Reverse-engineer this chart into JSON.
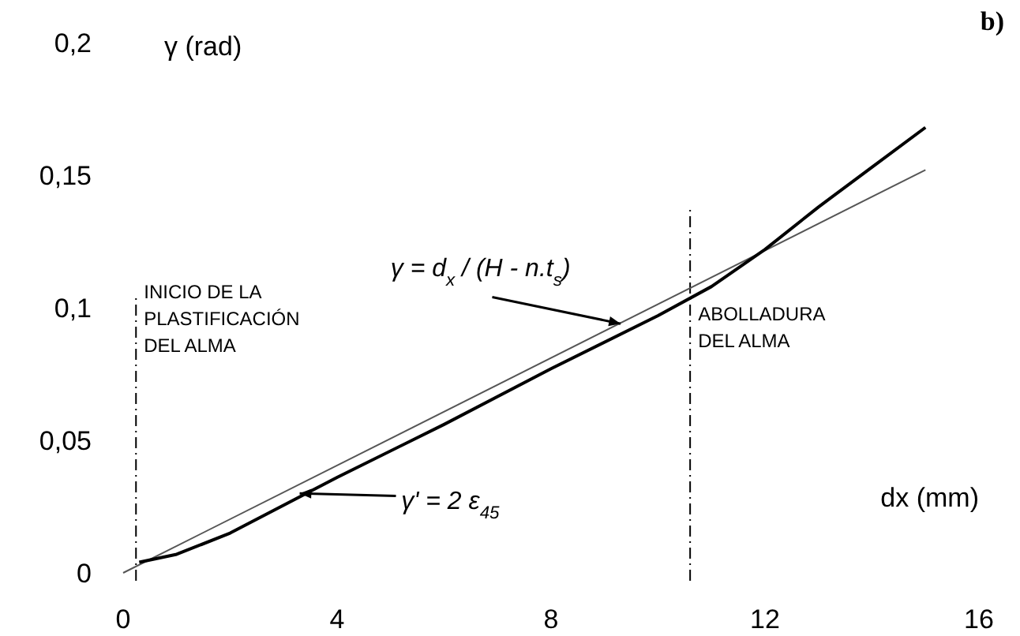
{
  "chart_data": {
    "type": "line",
    "xlabel": "dx (mm)",
    "ylabel": "γ (rad)",
    "annotations": [
      "b)"
    ],
    "xlim": [
      0,
      16
    ],
    "xticks": [
      0,
      4,
      8,
      12,
      16
    ],
    "ylim": [
      0,
      0.2
    ],
    "yticks": [
      {
        "value": 0,
        "label": "0"
      },
      {
        "value": 0.05,
        "label": "0,05"
      },
      {
        "value": 0.1,
        "label": "0,1"
      },
      {
        "value": 0.15,
        "label": "0,15"
      },
      {
        "value": 0.2,
        "label": "0,2"
      }
    ],
    "grid": false,
    "marker": "none",
    "line_style": "solid",
    "series": [
      {
        "name": "γ = d$_{x}$ / (H - n.t$_{s}$)",
        "color": "#555555",
        "x": [
          0,
          15
        ],
        "values": [
          0,
          0.152
        ]
      },
      {
        "name": "γ' = 2 ε$_{45}$",
        "color": "#000000",
        "x": [
          0.3,
          1,
          2,
          4,
          6,
          8,
          10,
          11,
          12,
          13,
          14,
          15
        ],
        "values": [
          0.004,
          0.007,
          0.015,
          0.036,
          0.056,
          0.077,
          0.097,
          0.108,
          0.122,
          0.138,
          0.153,
          0.168
        ]
      }
    ],
    "ref_lines": [
      {
        "axis": "x",
        "value": 0.24,
        "label": "INICIO DE LA\nPLASTIFICACIÓN\nDEL ALMA",
        "color": "#000000",
        "line_style": "dashed"
      },
      {
        "axis": "x",
        "value": 10.6,
        "label": "ABOLLADURA\nDEL  ALMA",
        "color": "#000000",
        "line_style": "dashed"
      }
    ]
  }
}
